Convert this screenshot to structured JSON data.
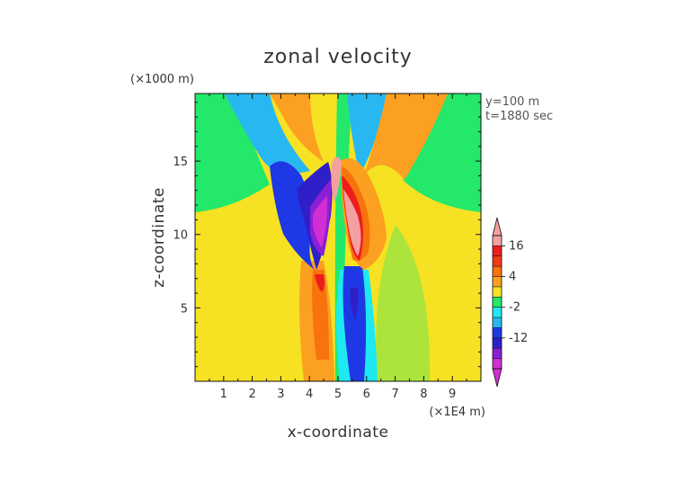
{
  "chart_data": {
    "type": "heatmap",
    "title": "zonal velocity",
    "xlabel": "x-coordinate",
    "ylabel": "z-coordinate",
    "x_unit": "(×1E4 m)",
    "y_unit": "(×1000 m)",
    "xlim": [
      0,
      10
    ],
    "ylim": [
      0,
      19.6
    ],
    "x_ticks": [
      1,
      2,
      3,
      4,
      5,
      6,
      7,
      8,
      9
    ],
    "y_ticks": [
      5,
      10,
      15
    ],
    "annotations": [
      "y=100 m",
      "t=1880 sec"
    ],
    "colorbar": {
      "labeled_ticks": [
        16,
        4,
        -2,
        -12
      ],
      "levels": [
        {
          "value": 18,
          "color": "#f4a0a0"
        },
        {
          "value": 16,
          "color": "#ee1c1c"
        },
        {
          "value": 12,
          "color": "#f43a12"
        },
        {
          "value": 8,
          "color": "#f8720e"
        },
        {
          "value": 4,
          "color": "#fba020"
        },
        {
          "value": 2,
          "color": "#f6e222"
        },
        {
          "value": 0,
          "color": "#23e86a"
        },
        {
          "value": -2,
          "color": "#1ee8f0"
        },
        {
          "value": -4,
          "color": "#27b8f2"
        },
        {
          "value": -8,
          "color": "#1e38e6"
        },
        {
          "value": -12,
          "color": "#2f1fc8"
        },
        {
          "value": -14,
          "color": "#8a1fd6"
        },
        {
          "value": -16,
          "color": "#d12ed4"
        }
      ]
    },
    "field_regions": [
      {
        "label": "negative core",
        "value": -14,
        "x": [
          3.8,
          4.6
        ],
        "z": [
          8.2,
          14.8
        ]
      },
      {
        "label": "positive core",
        "value": 18,
        "x": [
          5.0,
          6.0
        ],
        "z": [
          8.5,
          15.2
        ]
      },
      {
        "label": "lower negative lobe",
        "value": -12,
        "x": [
          5.3,
          6.1
        ],
        "z": [
          0,
          7.5
        ]
      },
      {
        "label": "lower positive lobe",
        "value": 8,
        "x": [
          3.8,
          4.7
        ],
        "z": [
          0,
          7.8
        ]
      }
    ]
  }
}
